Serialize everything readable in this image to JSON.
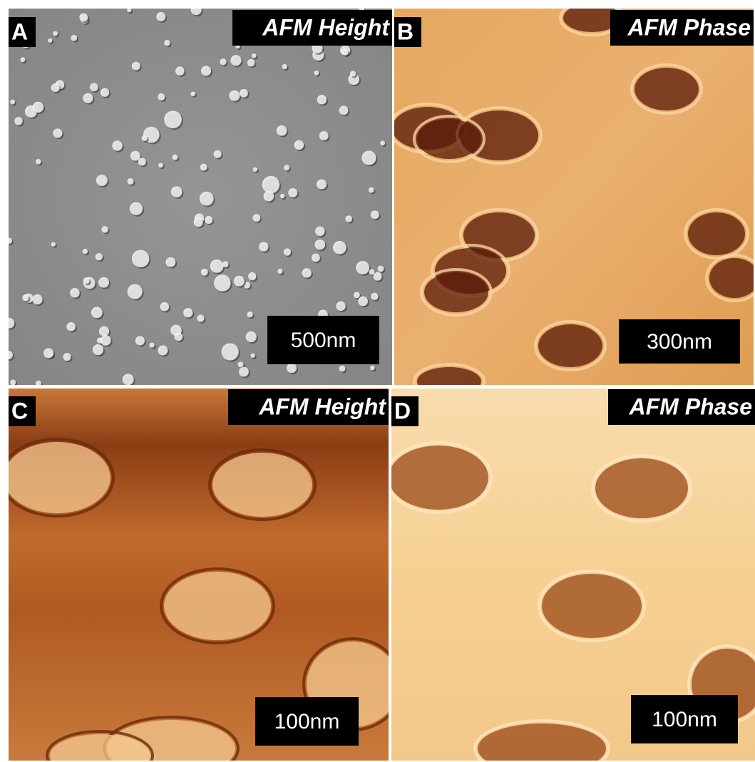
{
  "panels": [
    {
      "label": "A",
      "title": "AFM Height",
      "scale_bar": "500nm"
    },
    {
      "label": "B",
      "title": "AFM Phase",
      "scale_bar": "300nm"
    },
    {
      "label": "C",
      "title": "AFM Height",
      "scale_bar": "100nm"
    },
    {
      "label": "D",
      "title": "AFM Phase",
      "scale_bar": "100nm"
    }
  ]
}
